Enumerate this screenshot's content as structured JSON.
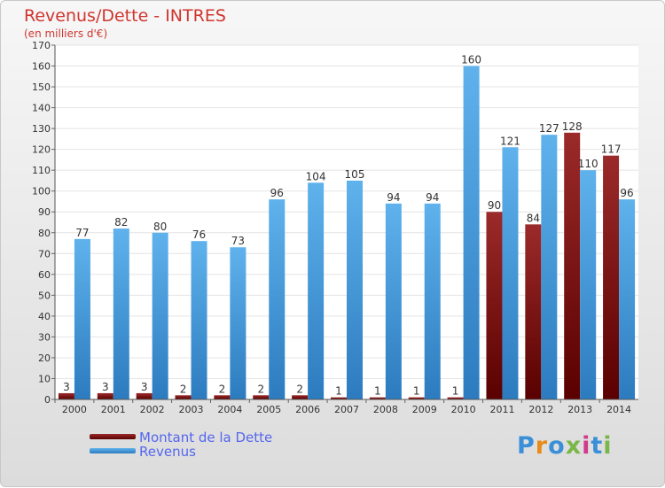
{
  "header": {
    "title": "Revenus/Dette - INTRES",
    "subtitle": "(en milliers d'€)"
  },
  "legend": {
    "debt_label": "Montant de la Dette",
    "revenue_label": "Revenus"
  },
  "logo": {
    "text": "Proxiti"
  },
  "colors": {
    "debt_top": "#9b2a2a",
    "debt_bottom": "#5a0000",
    "revenue_top": "#5fb2ec",
    "revenue_bottom": "#2c7bbf",
    "title": "#d0352e",
    "legend_text": "#5566ee"
  },
  "chart_data": {
    "type": "bar",
    "categories": [
      "2000",
      "2001",
      "2002",
      "2003",
      "2004",
      "2005",
      "2006",
      "2007",
      "2008",
      "2009",
      "2010",
      "2011",
      "2012",
      "2013",
      "2014"
    ],
    "series": [
      {
        "name": "Montant de la Dette",
        "values": [
          3,
          3,
          3,
          2,
          2,
          2,
          2,
          1,
          1,
          1,
          1,
          90,
          84,
          128,
          117
        ]
      },
      {
        "name": "Revenus",
        "values": [
          77,
          82,
          80,
          76,
          73,
          96,
          104,
          105,
          94,
          94,
          160,
          121,
          127,
          110,
          96
        ]
      }
    ],
    "ylim": [
      0,
      170
    ],
    "yticks": [
      0,
      10,
      20,
      30,
      40,
      50,
      60,
      70,
      80,
      90,
      100,
      110,
      120,
      130,
      140,
      150,
      160,
      170
    ],
    "grid": true
  }
}
